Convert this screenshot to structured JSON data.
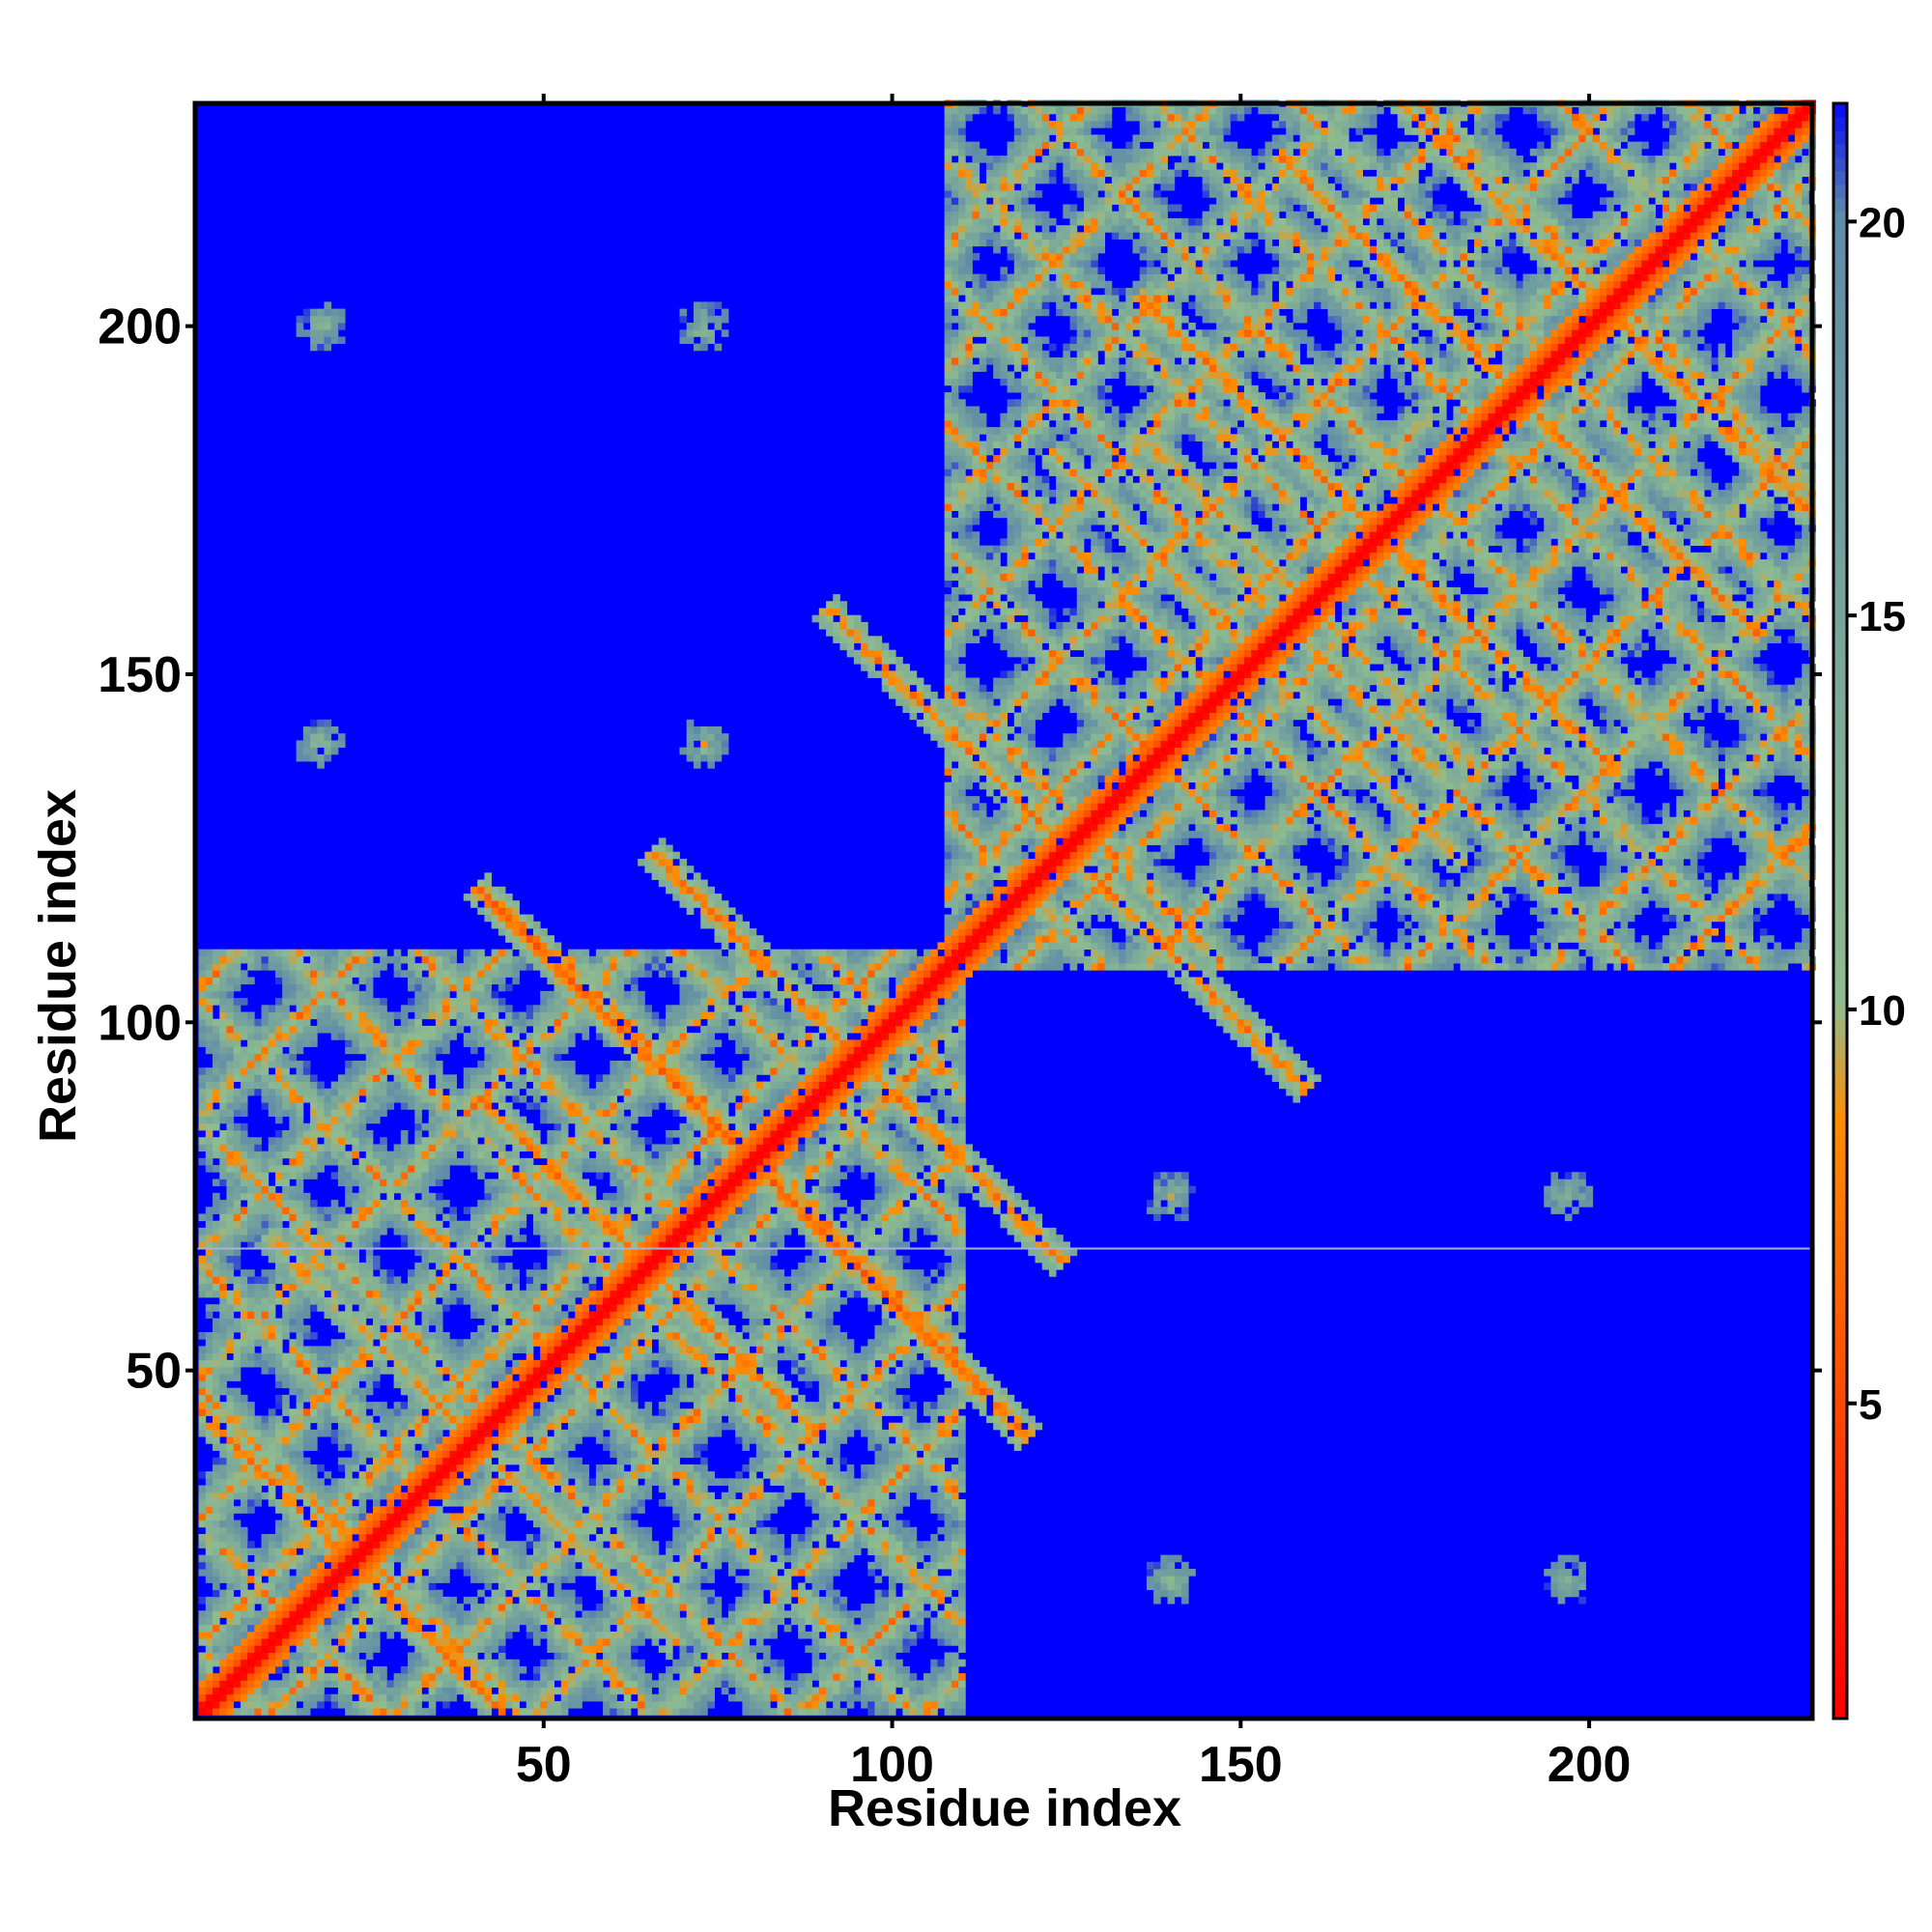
{
  "chart_data": {
    "type": "heatmap",
    "title": "",
    "xlabel": "Residue index",
    "ylabel": "Residue index",
    "n_residues": 232,
    "xlim": [
      1,
      232
    ],
    "ylim": [
      1,
      232
    ],
    "x_ticks": [
      50,
      100,
      150,
      200
    ],
    "y_ticks": [
      50,
      100,
      150,
      200
    ],
    "colorbar": {
      "range": [
        1,
        21.5
      ],
      "ticks": [
        5,
        10,
        15,
        20
      ],
      "colors": [
        "#ff0000",
        "#ff8c00",
        "#8fbc8f",
        "#5f8ca8",
        "#0000ff"
      ],
      "stops": [
        1,
        8.5,
        10,
        20,
        21.5
      ]
    },
    "diagonal_value": 1,
    "background_value": 21.5,
    "domains": [
      {
        "start": 1,
        "end": 110
      },
      {
        "start": 108,
        "end": 232
      }
    ],
    "contact_bands": [
      {
        "i": 5,
        "j": 40,
        "width": 30,
        "peak": 6
      },
      {
        "i": 20,
        "j": 60,
        "width": 20,
        "peak": 7
      },
      {
        "i": 20,
        "j": 110,
        "width": 8,
        "peak": 6
      },
      {
        "i": 40,
        "j": 90,
        "width": 15,
        "peak": 6
      },
      {
        "i": 60,
        "j": 100,
        "width": 30,
        "peak": 5
      },
      {
        "i": 80,
        "j": 110,
        "width": 20,
        "peak": 6
      },
      {
        "i": 110,
        "j": 140,
        "width": 25,
        "peak": 6
      },
      {
        "i": 130,
        "j": 175,
        "width": 20,
        "peak": 7
      },
      {
        "i": 150,
        "j": 190,
        "width": 25,
        "peak": 6
      },
      {
        "i": 170,
        "j": 210,
        "width": 25,
        "peak": 6
      },
      {
        "i": 180,
        "j": 225,
        "width": 20,
        "peak": 6
      },
      {
        "i": 120,
        "j": 200,
        "width": 15,
        "peak": 7
      },
      {
        "i": 140,
        "j": 200,
        "width": 15,
        "peak": 6
      }
    ],
    "isolated_patches": [
      {
        "x": 18,
        "y": 200
      },
      {
        "x": 73,
        "y": 200
      },
      {
        "x": 18,
        "y": 140
      },
      {
        "x": 73,
        "y": 140
      },
      {
        "x": 140,
        "y": 75
      },
      {
        "x": 197,
        "y": 75
      },
      {
        "x": 140,
        "y": 20
      },
      {
        "x": 197,
        "y": 20
      }
    ],
    "separator_line_residue": 68
  }
}
